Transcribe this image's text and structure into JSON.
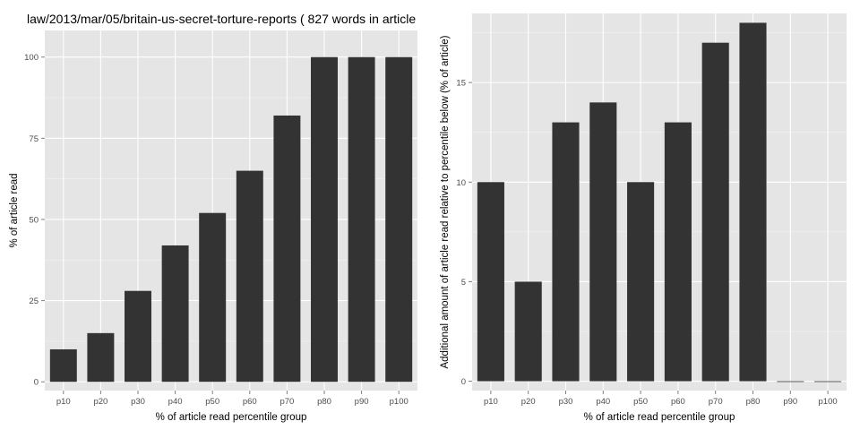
{
  "title": "law/2013/mar/05/britain-us-secret-torture-reports ( 827 words in article",
  "colors": {
    "panel_bg": "#e5e5e5",
    "grid_major": "#ffffff",
    "grid_minor": "#f2f2f2",
    "bar": "#333333"
  },
  "chart_data": [
    {
      "type": "bar",
      "title": "law/2013/mar/05/britain-us-secret-torture-reports ( 827 words in article",
      "xlabel": "% of article read percentile group",
      "ylabel": "% of article read",
      "categories": [
        "p10",
        "p20",
        "p30",
        "p40",
        "p50",
        "p60",
        "p70",
        "p80",
        "p90",
        "p100"
      ],
      "values": [
        10,
        15,
        28,
        42,
        52,
        65,
        82,
        100,
        100,
        100
      ],
      "ylim": [
        -2.7,
        108.2
      ],
      "yticks": [
        0,
        25,
        50,
        75,
        100
      ],
      "grid": true
    },
    {
      "type": "bar",
      "title": "",
      "xlabel": "% of article read percentile group",
      "ylabel": "Additional amount of article read relative to percentile below (% of article)",
      "categories": [
        "p10",
        "p20",
        "p30",
        "p40",
        "p50",
        "p60",
        "p70",
        "p80",
        "p90",
        "p100"
      ],
      "values": [
        10,
        5,
        13,
        14,
        10,
        13,
        17,
        18,
        0,
        0
      ],
      "ylim": [
        -0.47,
        18.47
      ],
      "yticks": [
        0,
        5,
        10,
        15
      ],
      "grid": true
    }
  ]
}
